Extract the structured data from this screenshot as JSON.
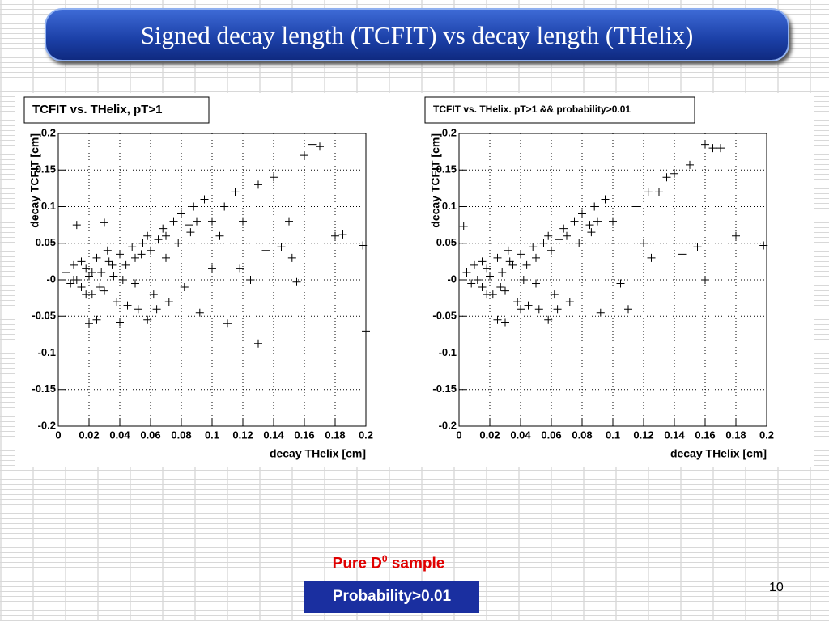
{
  "slide_title": "Signed decay length (TCFIT) vs decay length (THelix)",
  "caption": {
    "text": "Pure D",
    "sup": "0",
    "rest": " sample"
  },
  "box": "Probability>0.01",
  "page_number": "10",
  "chart_data": [
    {
      "type": "scatter",
      "title": "TCFIT vs. THelix, pT>1",
      "xlabel": "decay THelix [cm]",
      "ylabel": "decay TCFIT [cm]",
      "xlim": [
        0,
        0.2
      ],
      "ylim": [
        -0.2,
        0.2
      ],
      "grid": true,
      "xticks": [
        0,
        0.02,
        0.04,
        0.06,
        0.08,
        0.1,
        0.12,
        0.14,
        0.16,
        0.18,
        0.2
      ],
      "yticks": [
        -0.2,
        -0.15,
        -0.1,
        -0.05,
        {
          "value": 0,
          "label": "-0"
        },
        0.05,
        0.1,
        0.15,
        0.2
      ],
      "color": "#000000",
      "x": [
        0.005,
        0.008,
        0.01,
        0.012,
        0.015,
        0.018,
        0.02,
        0.022,
        0.025,
        0.028,
        0.03,
        0.032,
        0.035,
        0.038,
        0.04,
        0.042,
        0.045,
        0.048,
        0.05,
        0.052,
        0.055,
        0.058,
        0.06,
        0.062,
        0.065,
        0.068,
        0.07,
        0.072,
        0.075,
        0.078,
        0.08,
        0.082,
        0.085,
        0.088,
        0.09,
        0.095,
        0.1,
        0.1,
        0.105,
        0.11,
        0.115,
        0.12,
        0.125,
        0.13,
        0.13,
        0.135,
        0.14,
        0.145,
        0.15,
        0.155,
        0.16,
        0.165,
        0.17,
        0.18,
        0.185,
        0.198,
        0.2,
        0.012,
        0.03,
        0.025,
        0.04,
        0.058,
        0.02,
        0.01,
        0.015,
        0.018,
        0.022,
        0.027,
        0.033,
        0.036,
        0.044,
        0.05,
        0.054,
        0.064,
        0.07,
        0.086,
        0.092,
        0.108,
        0.118,
        0.152
      ],
      "values": [
        0.01,
        -0.005,
        0.02,
        0.0,
        -0.01,
        0.015,
        0.005,
        -0.02,
        0.03,
        0.01,
        -0.015,
        0.04,
        0.02,
        -0.03,
        0.035,
        0.0,
        -0.035,
        0.045,
        0.03,
        -0.04,
        0.05,
        0.06,
        0.04,
        -0.02,
        0.055,
        0.07,
        0.06,
        -0.03,
        0.08,
        0.05,
        0.09,
        -0.01,
        0.075,
        0.1,
        0.08,
        0.11,
        0.08,
        0.015,
        0.06,
        -0.06,
        0.12,
        0.08,
        0.0,
        0.13,
        -0.087,
        0.04,
        0.14,
        0.045,
        0.08,
        -0.003,
        0.17,
        0.185,
        0.182,
        0.06,
        0.062,
        0.047,
        -0.07,
        0.075,
        0.078,
        -0.055,
        -0.058,
        -0.055,
        -0.06,
        0.0,
        0.025,
        -0.02,
        0.01,
        -0.01,
        0.025,
        0.005,
        0.02,
        -0.005,
        0.035,
        -0.04,
        0.03,
        0.065,
        -0.045,
        0.1,
        0.015,
        0.03
      ]
    },
    {
      "type": "scatter",
      "title": "TCFIT vs. THelix. pT>1 && probability>0.01",
      "xlabel": "decay THelix [cm]",
      "ylabel": "decay TCFIT [cm]",
      "xlim": [
        0,
        0.2
      ],
      "ylim": [
        -0.2,
        0.2
      ],
      "grid": true,
      "xticks": [
        0,
        0.02,
        0.04,
        0.06,
        0.08,
        0.1,
        0.12,
        0.14,
        0.16,
        0.18,
        0.2
      ],
      "yticks": [
        -0.2,
        -0.15,
        -0.1,
        -0.05,
        {
          "value": 0,
          "label": "-0"
        },
        0.05,
        0.1,
        0.15,
        0.2
      ],
      "color": "#000000",
      "x": [
        0.005,
        0.008,
        0.01,
        0.012,
        0.015,
        0.018,
        0.02,
        0.022,
        0.025,
        0.028,
        0.03,
        0.032,
        0.035,
        0.038,
        0.04,
        0.042,
        0.045,
        0.048,
        0.05,
        0.052,
        0.055,
        0.058,
        0.06,
        0.062,
        0.065,
        0.068,
        0.07,
        0.072,
        0.075,
        0.078,
        0.08,
        0.085,
        0.088,
        0.09,
        0.095,
        0.1,
        0.105,
        0.11,
        0.115,
        0.12,
        0.125,
        0.13,
        0.135,
        0.14,
        0.145,
        0.15,
        0.155,
        0.16,
        0.165,
        0.17,
        0.18,
        0.198,
        0.003,
        0.025,
        0.03,
        0.04,
        0.058,
        0.015,
        0.018,
        0.027,
        0.033,
        0.044,
        0.05,
        0.064,
        0.086,
        0.092,
        0.123,
        0.16
      ],
      "values": [
        0.01,
        -0.005,
        0.02,
        0.0,
        -0.01,
        0.015,
        0.005,
        -0.02,
        0.03,
        0.01,
        -0.015,
        0.04,
        0.02,
        -0.03,
        0.035,
        0.0,
        -0.035,
        0.045,
        0.03,
        -0.04,
        0.05,
        0.06,
        0.04,
        -0.02,
        0.055,
        0.07,
        0.06,
        -0.03,
        0.08,
        0.05,
        0.09,
        0.075,
        0.1,
        0.08,
        0.11,
        0.08,
        -0.005,
        -0.04,
        0.1,
        0.05,
        0.03,
        0.12,
        0.14,
        0.145,
        0.035,
        0.157,
        0.045,
        0.185,
        0.18,
        0.18,
        0.06,
        0.047,
        0.073,
        -0.055,
        -0.058,
        -0.04,
        -0.055,
        0.025,
        -0.02,
        -0.01,
        0.025,
        0.02,
        -0.005,
        -0.04,
        0.065,
        -0.045,
        0.12,
        0.0
      ]
    }
  ]
}
